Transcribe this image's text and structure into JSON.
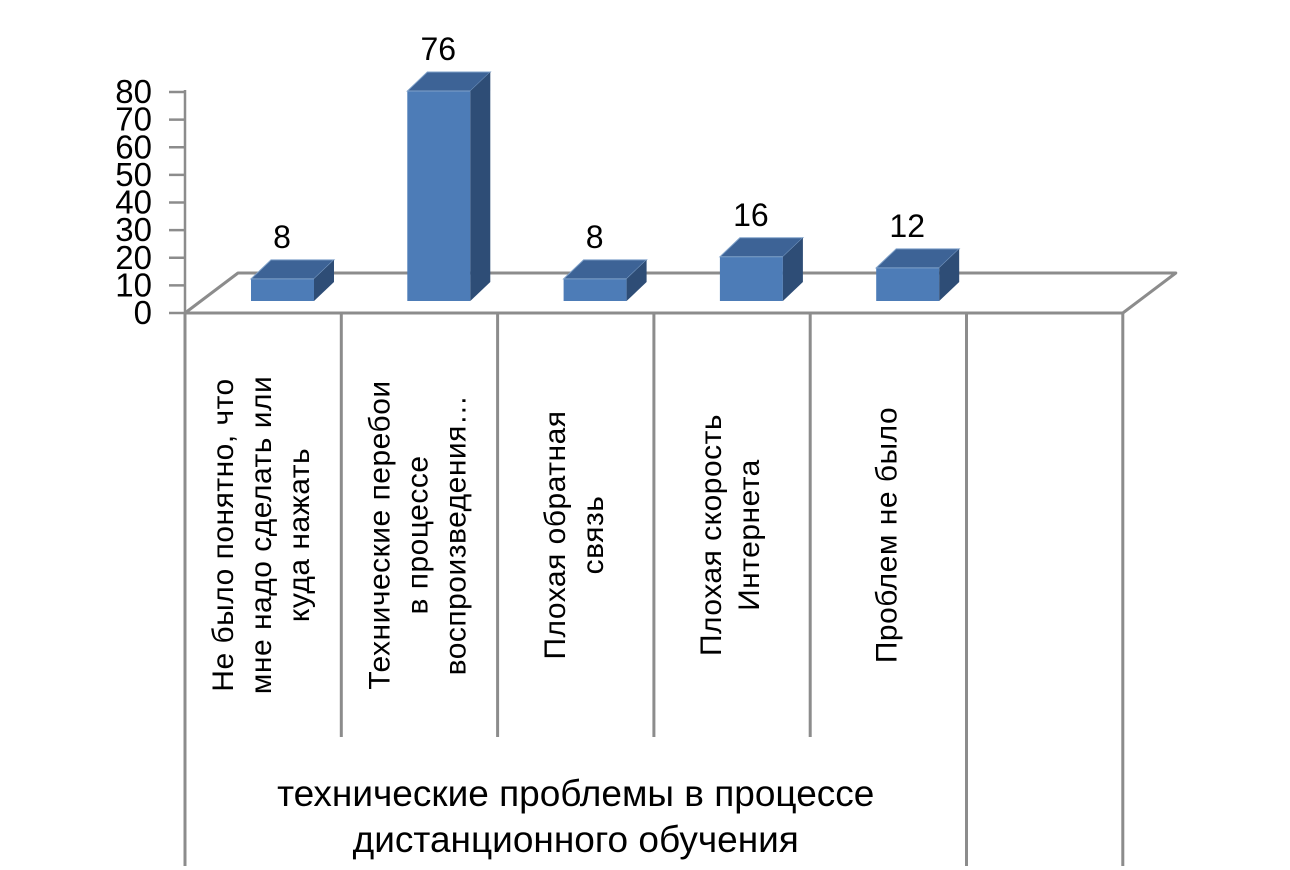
{
  "chart_data": {
    "type": "bar",
    "variant": "3d-column",
    "categories": [
      "Не было понятно, что мне надо сделать или куда нажать",
      "Технические перебои в процессе воспроизведения…",
      "Плохая обратная связь",
      "Плохая скорость Интернета",
      "Проблем не было"
    ],
    "category_display_lines": [
      [
        "Не было понятно, что",
        "мне надо сделать или",
        "куда нажать"
      ],
      [
        "Технические перебои",
        "в процессе",
        "воспроизведения…"
      ],
      [
        "Плохая обратная",
        "связь"
      ],
      [
        "Плохая скорость",
        "Интернета"
      ],
      [
        "Проблем не было"
      ]
    ],
    "values": [
      8,
      76,
      8,
      16,
      12
    ],
    "data_labels": [
      "8",
      "76",
      "8",
      "16",
      "12"
    ],
    "xlabel": "технические проблемы в процессе дистанционного обучения",
    "xlabel_display_lines": [
      "технические проблемы в процессе",
      "дистанционного обучения"
    ],
    "ylabel": "",
    "ylim": [
      0,
      80
    ],
    "ytick_step": 10,
    "yticks": [
      0,
      10,
      20,
      30,
      40,
      50,
      60,
      70,
      80
    ],
    "empty_trailing_slots": 1,
    "grid": "off",
    "legend": "none",
    "colors": {
      "bar_front": "#4D7CB7",
      "bar_top": "#3D6396",
      "bar_side": "#2E4D76",
      "bar_top_edge": "#7FA1C9",
      "axis_line": "#8C8C8C",
      "text": "#000000",
      "background": "#FFFFFF"
    }
  }
}
